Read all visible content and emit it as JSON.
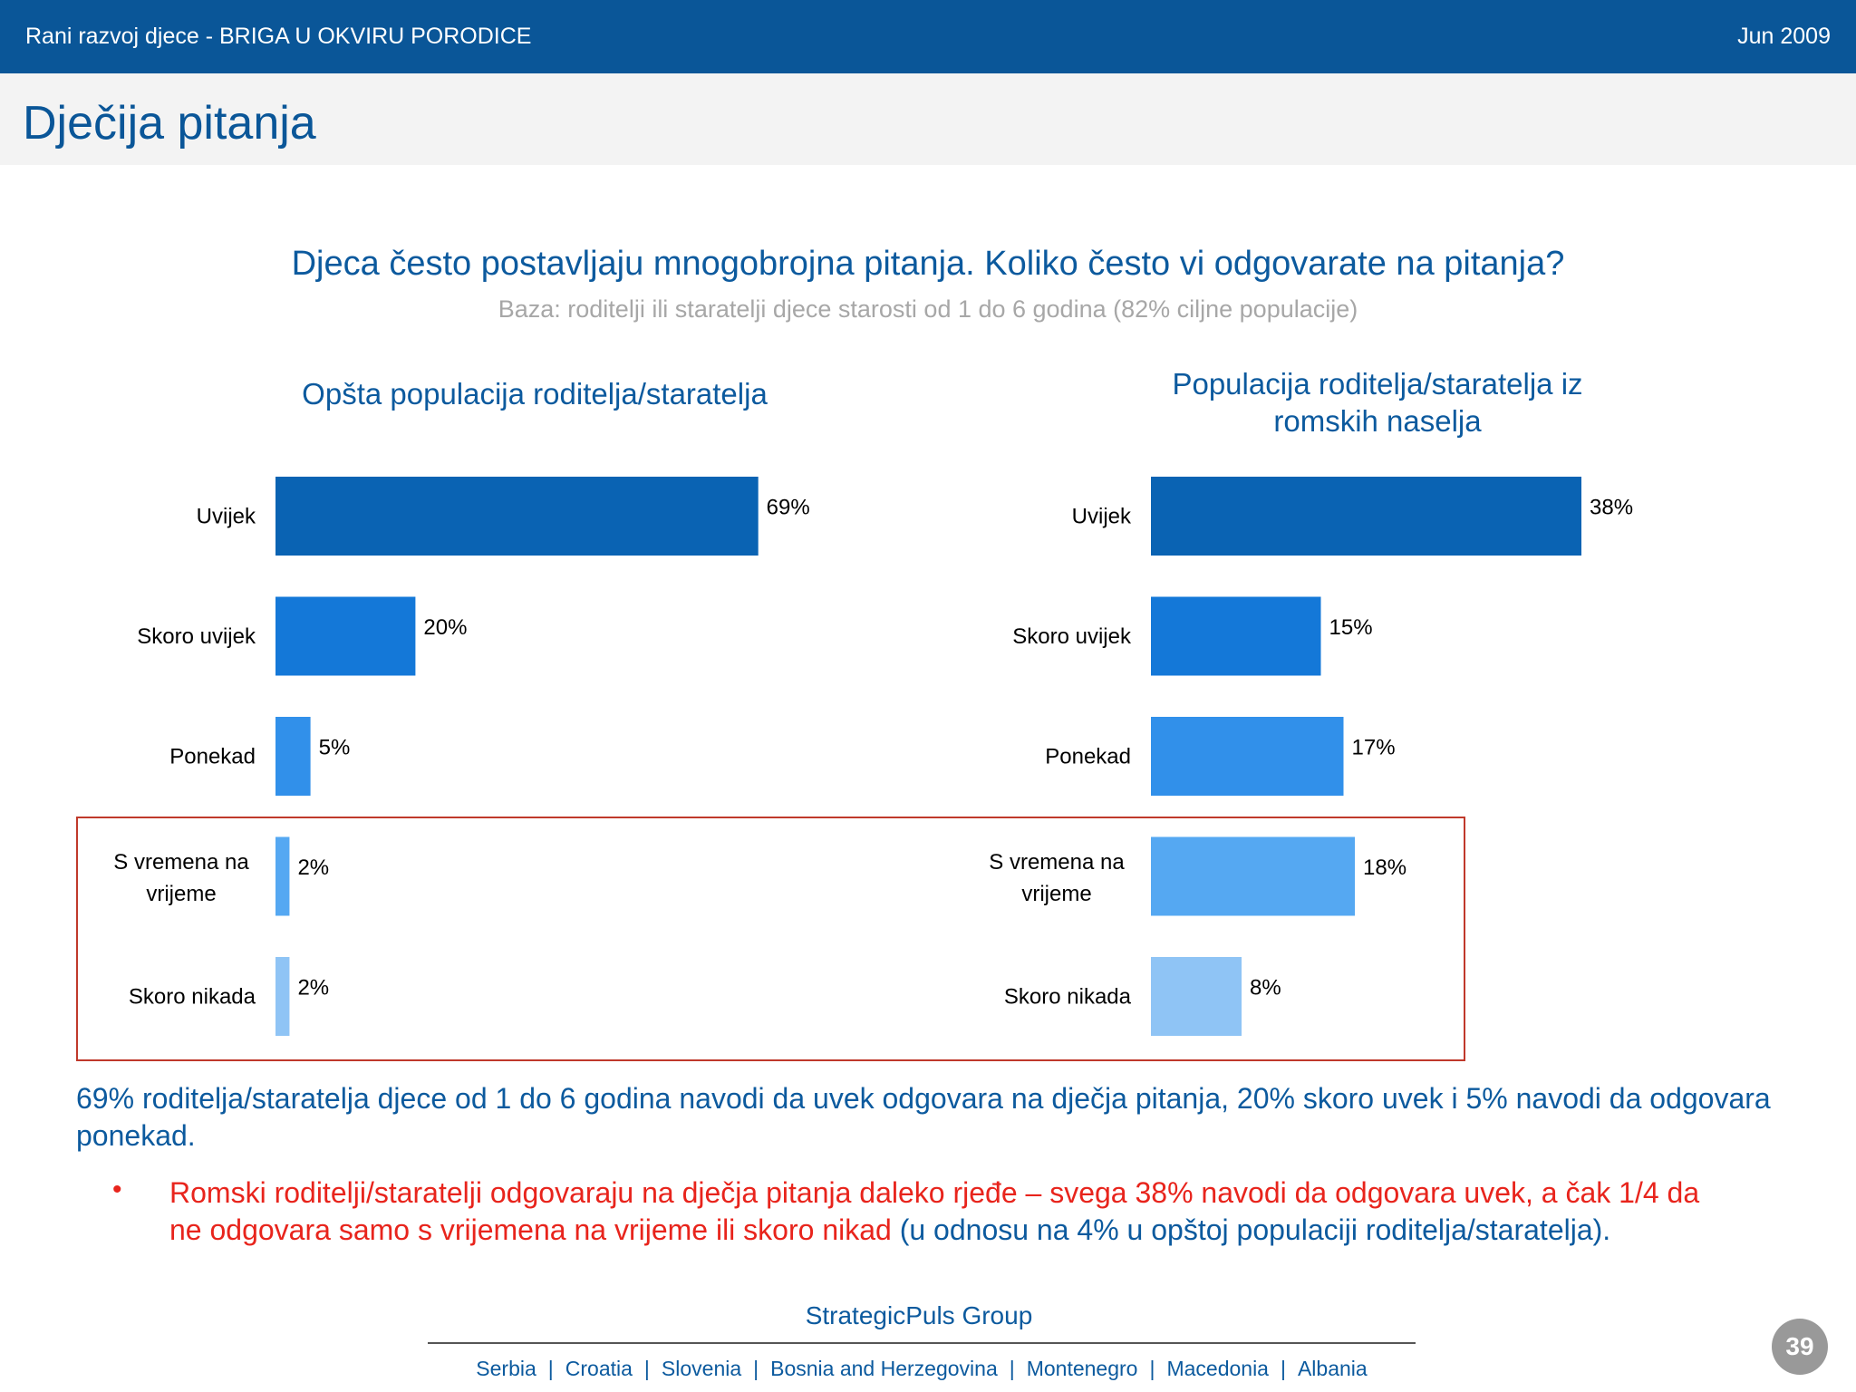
{
  "header": {
    "left_text": "Rani razvoj djece - BRIGA U OKVIRU PORODICE",
    "right_text": "Jun 2009"
  },
  "page_title": "Dječija pitanja",
  "question": "Djeca često postavljaju mnogobrojna pitanja. Koliko često vi odgovarate na pitanja?",
  "base": "Baza: roditelji ili staratelji djece starosti od 1 do 6 godina (82% ciljne populacije)",
  "chart_titles": {
    "left": "Opšta populacija roditelja/staratelja",
    "right": "Populacija roditelja/staratelja iz romskih naselja"
  },
  "chart_data": [
    {
      "type": "bar",
      "orientation": "horizontal",
      "title": "Opšta populacija roditelja/staratelja",
      "categories": [
        "Uvijek",
        "Skoro uvijek",
        "Ponekad",
        "S vremena na vrijeme",
        "Skoro nikada"
      ],
      "values": [
        69,
        20,
        5,
        2,
        2
      ],
      "value_labels": [
        "69%",
        "20%",
        "5%",
        "2%",
        "2%"
      ],
      "unit": "%",
      "colors": [
        "#0a63b3",
        "#1478d8",
        "#3190ea",
        "#55a8f2",
        "#8fc4f5"
      ],
      "xlim": [
        0,
        100
      ],
      "grid": false,
      "legend": "none"
    },
    {
      "type": "bar",
      "orientation": "horizontal",
      "title": "Populacija roditelja/staratelja iz romskih naselja",
      "categories": [
        "Uvijek",
        "Skoro uvijek",
        "Ponekad",
        "S vremena na vrijeme",
        "Skoro nikada"
      ],
      "values": [
        38,
        15,
        17,
        18,
        8
      ],
      "value_labels": [
        "38%",
        "15%",
        "17%",
        "18%",
        "8%"
      ],
      "unit": "%",
      "colors": [
        "#0a63b3",
        "#1478d8",
        "#3190ea",
        "#55a8f2",
        "#8fc4f5"
      ],
      "xlim": [
        0,
        100
      ],
      "grid": false,
      "legend": "none"
    }
  ],
  "summary": "69% roditelja/staratelja djece od 1 do 6 godina navodi da uvek odgovara na dječja pitanja, 20% skoro uvek i 5% navodi da odgovara ponekad.",
  "bullet": {
    "marker": "•",
    "text": "Romski roditelji/staratelji odgovaraju na dječja pitanja daleko rjeđe – svega 38% navodi da odgovara uvek, a čak 1/4 da ne odgovara samo s vrijemena na vrijeme ili skoro nikad ",
    "note": "(u odnosu na 4% u opštoj populaciji roditelja/staratelja)."
  },
  "footer": {
    "company": "StrategicPuls Group",
    "countries": [
      "Serbia",
      "Croatia",
      "Slovenia",
      "Bosnia and Herzegovina",
      "Montenegro",
      "Macedonia",
      "Albania"
    ],
    "separator": "|",
    "page_number": "39"
  },
  "colors": {
    "header_bg": "#0a5698",
    "title_text": "#0a5698",
    "accent_blue": "#0c5a9e",
    "highlight_red": "#e8241c",
    "box_border": "#c0392b"
  }
}
